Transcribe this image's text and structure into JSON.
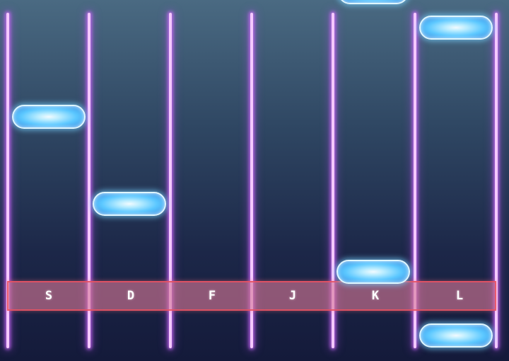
{
  "lanes": [
    {
      "key": "S"
    },
    {
      "key": "D"
    },
    {
      "key": "F"
    },
    {
      "key": "J"
    },
    {
      "key": "K"
    },
    {
      "key": "L"
    }
  ],
  "notes": [
    {
      "lane": 0,
      "row": "upper-mid"
    },
    {
      "lane": 1,
      "row": "middle"
    },
    {
      "lane": 4,
      "row": "hit-line"
    },
    {
      "lane": 4,
      "row": "top-edge"
    },
    {
      "lane": 5,
      "row": "top"
    },
    {
      "lane": 5,
      "row": "bottom"
    }
  ],
  "colors": {
    "lane_line": "#f5c8ff",
    "lane_glow": "#d26eff",
    "hit_bar": "#d67896",
    "hit_bar_border": "#eb505f",
    "note_core": "#b8ecff",
    "note_edge": "#2f86e0"
  }
}
